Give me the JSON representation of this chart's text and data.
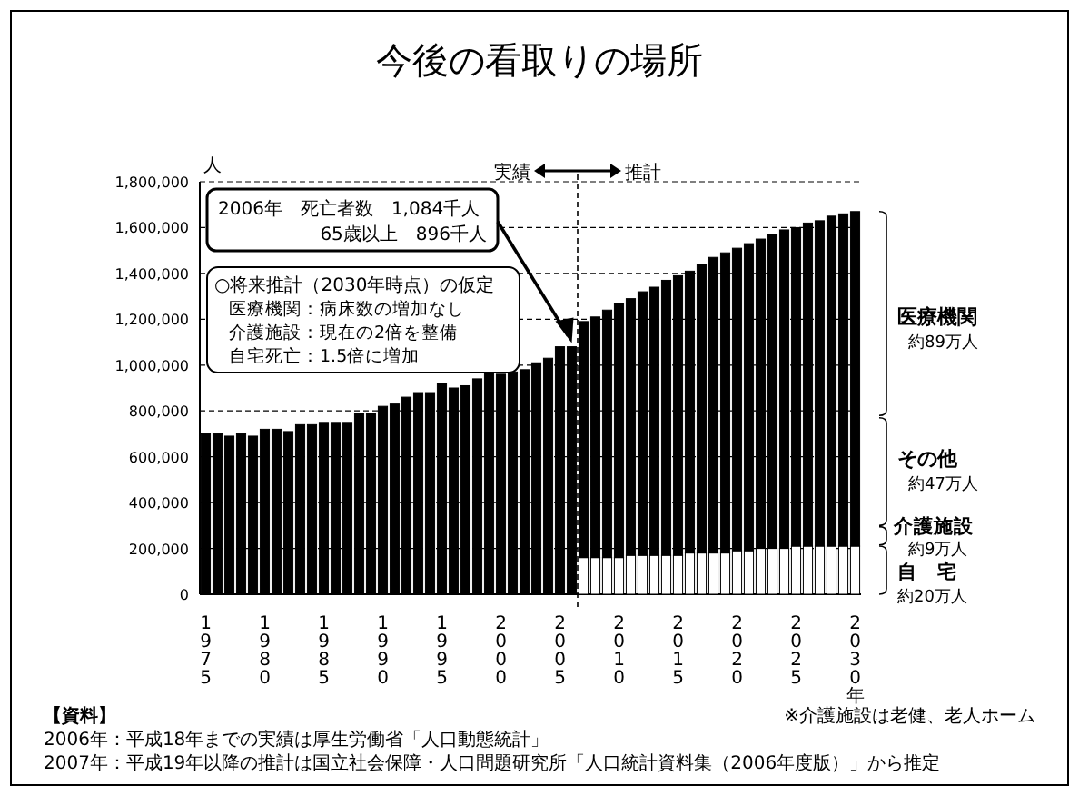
{
  "chart_data": {
    "type": "bar",
    "title": "今後の看取りの場所",
    "ylabel": "人",
    "stacked": true,
    "grid": "y",
    "x": [
      1975,
      1976,
      1977,
      1978,
      1979,
      1980,
      1981,
      1982,
      1983,
      1984,
      1985,
      1986,
      1987,
      1988,
      1989,
      1990,
      1991,
      1992,
      1993,
      1994,
      1995,
      1996,
      1997,
      1998,
      1999,
      2000,
      2001,
      2002,
      2003,
      2004,
      2005,
      2006,
      2007,
      2008,
      2009,
      2010,
      2011,
      2012,
      2013,
      2014,
      2015,
      2016,
      2017,
      2018,
      2019,
      2020,
      2021,
      2022,
      2023,
      2024,
      2025,
      2026,
      2027,
      2028,
      2029,
      2030
    ],
    "xlim": [
      1974.5,
      2030.5
    ],
    "xticks": [
      1975,
      1980,
      1985,
      1990,
      1995,
      2000,
      2005,
      2010,
      2015,
      2020,
      2025,
      {
        "value": 2030,
        "label": "2030年"
      }
    ],
    "ylim": [
      0,
      1800000
    ],
    "yticks": [
      0,
      {
        "value": 200000,
        "label": "200,000"
      },
      {
        "value": 400000,
        "label": "400,000"
      },
      {
        "value": 600000,
        "label": "600,000"
      },
      {
        "value": 800000,
        "label": "800,000"
      },
      {
        "value": 1000000,
        "label": "1,000,000"
      },
      {
        "value": 1200000,
        "label": "1,200,000"
      },
      {
        "value": 1400000,
        "label": "1,400,000"
      },
      {
        "value": 1600000,
        "label": "1,600,000"
      },
      {
        "value": 1800000,
        "label": "1,800,000"
      }
    ],
    "series": [
      {
        "color": "#ffffff",
        "values": [
          null,
          null,
          null,
          null,
          null,
          null,
          null,
          null,
          null,
          null,
          null,
          null,
          null,
          null,
          null,
          null,
          null,
          null,
          null,
          null,
          null,
          null,
          null,
          null,
          null,
          null,
          null,
          null,
          null,
          null,
          null,
          null,
          160000,
          160000,
          160000,
          160000,
          170000,
          170000,
          170000,
          170000,
          170000,
          180000,
          180000,
          180000,
          180000,
          190000,
          190000,
          200000,
          200000,
          200000,
          210000,
          210000,
          210000,
          210000,
          210000,
          210000
        ]
      },
      {
        "color": "#000000",
        "values": [
          700000,
          700000,
          690000,
          700000,
          690000,
          720000,
          720000,
          710000,
          740000,
          740000,
          750000,
          750000,
          750000,
          790000,
          790000,
          820000,
          830000,
          860000,
          880000,
          880000,
          920000,
          900000,
          910000,
          940000,
          980000,
          960000,
          970000,
          980000,
          1010000,
          1030000,
          1080000,
          1080000,
          1030000,
          1050000,
          1080000,
          1110000,
          1120000,
          1150000,
          1170000,
          1200000,
          1220000,
          1230000,
          1260000,
          1290000,
          1310000,
          1320000,
          1340000,
          1350000,
          1370000,
          1390000,
          1390000,
          1410000,
          1420000,
          1440000,
          1450000,
          1460000
        ]
      }
    ],
    "ref_lines": [
      {
        "axis": "x",
        "value": 2006.5,
        "line_style": "dashed",
        "color": "#000000"
      }
    ],
    "annotations": [
      {
        "text": "2006年　死亡者数　1,084千人",
        "x": 2006,
        "y": 1080000
      },
      "65歳以上　896千人",
      "○将来推計（2030年時点）の仮定",
      "医療機関：病床数の増加なし",
      "介護施設：現在の2倍を整備",
      "自宅死亡：1.5倍に増加",
      "医療機関",
      "約89万人",
      "その他",
      "約47万人",
      "介護施設",
      "約9万人",
      "自　宅",
      "約20万人",
      "実績",
      "推計",
      "【資料】",
      "2006年：平成18年までの実績は厚生労働省「人口動態統計」",
      "2007年：平成19年以降の推計は国立社会保障・人口問題研究所「人口統計資料集（2006年度版）」から推定",
      "※介護施設は老健、老人ホーム"
    ]
  }
}
